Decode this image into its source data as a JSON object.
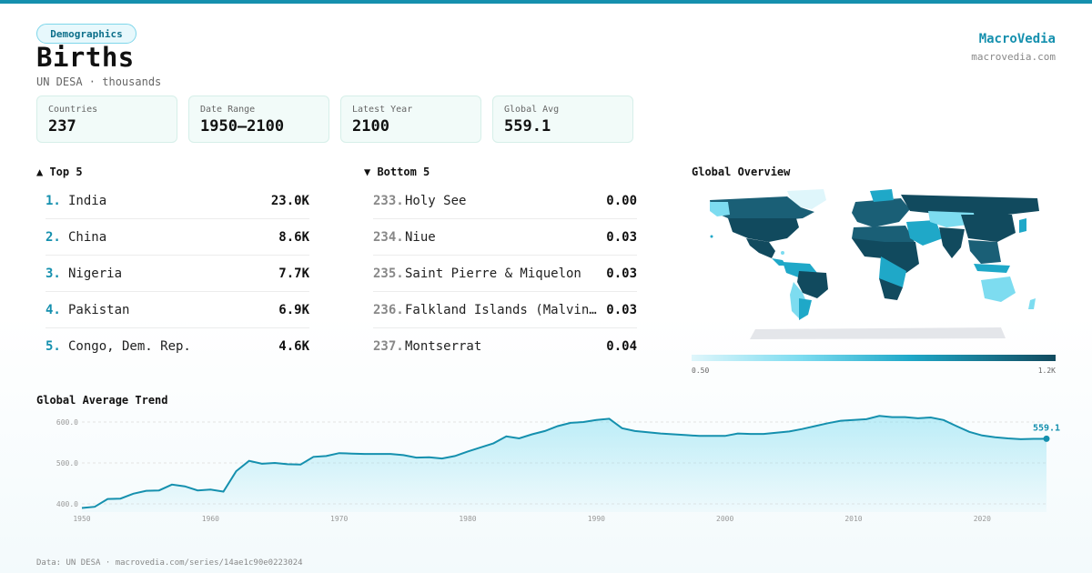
{
  "header": {
    "badge": "Demographics",
    "title": "Births",
    "subtitle": "UN DESA · thousands",
    "brand": "MacroVedia",
    "brand_url": "macrovedia.com"
  },
  "stats": [
    {
      "label": "Countries",
      "value": "237"
    },
    {
      "label": "Date Range",
      "value": "1950–2100"
    },
    {
      "label": "Latest Year",
      "value": "2100"
    },
    {
      "label": "Global Avg",
      "value": "559.1"
    }
  ],
  "top5": {
    "heading": "▲ Top 5",
    "rows": [
      {
        "rank": "1.",
        "name": "India",
        "value": "23.0K"
      },
      {
        "rank": "2.",
        "name": "China",
        "value": "8.6K"
      },
      {
        "rank": "3.",
        "name": "Nigeria",
        "value": "7.7K"
      },
      {
        "rank": "4.",
        "name": "Pakistan",
        "value": "6.9K"
      },
      {
        "rank": "5.",
        "name": "Congo, Dem. Rep.",
        "value": "4.6K"
      }
    ]
  },
  "bottom5": {
    "heading": "▼ Bottom 5",
    "rows": [
      {
        "rank": "233.",
        "name": "Holy See",
        "value": "0.00"
      },
      {
        "rank": "234.",
        "name": "Niue",
        "value": "0.03"
      },
      {
        "rank": "235.",
        "name": "Saint Pierre & Miquelon",
        "value": "0.03"
      },
      {
        "rank": "236.",
        "name": "Falkland Islands (Malvinas)",
        "value": "0.03"
      },
      {
        "rank": "237.",
        "name": "Montserrat",
        "value": "0.04"
      }
    ]
  },
  "map": {
    "heading": "Global Overview",
    "scale_min": "0.50",
    "scale_max": "1.2K"
  },
  "trend": {
    "heading": "Global Average Trend",
    "end_label": "559.1"
  },
  "footer": "Data: UN DESA · macrovedia.com/series/14ae1c90e0223024",
  "colors": {
    "accent": "#1590ae",
    "dark": "#114a5e",
    "light": "#7ddcf0"
  },
  "chart_data": {
    "type": "area",
    "title": "Global Average Trend",
    "xlabel": "",
    "ylabel": "",
    "xlim": [
      1950,
      2025
    ],
    "ylim": [
      380,
      620
    ],
    "yticks": [
      400.0,
      500.0,
      600.0
    ],
    "ytick_labels": [
      "400.0",
      "500.0",
      "600.0"
    ],
    "xticks": [
      1950,
      1960,
      1970,
      1980,
      1990,
      2000,
      2010,
      2020
    ],
    "grid": true,
    "end_value_label": "559.1",
    "series": [
      {
        "x": [
          1950,
          1951,
          1952,
          1953,
          1954,
          1955,
          1956,
          1957,
          1958,
          1959,
          1960,
          1961,
          1962,
          1963,
          1964,
          1965,
          1966,
          1967,
          1968,
          1969,
          1970,
          1971,
          1972,
          1973,
          1974,
          1975,
          1976,
          1977,
          1978,
          1979,
          1980,
          1981,
          1982,
          1983,
          1984,
          1985,
          1986,
          1987,
          1988,
          1989,
          1990,
          1991,
          1992,
          1993,
          1994,
          1995,
          1996,
          1997,
          1998,
          1999,
          2000,
          2001,
          2002,
          2003,
          2004,
          2005,
          2006,
          2007,
          2008,
          2009,
          2010,
          2011,
          2012,
          2013,
          2014,
          2015,
          2016,
          2017,
          2018,
          2019,
          2020,
          2021,
          2022,
          2023,
          2024,
          2025
        ],
        "values": [
          390,
          393,
          412,
          413,
          425,
          432,
          433,
          447,
          443,
          433,
          435,
          430,
          480,
          505,
          498,
          500,
          497,
          496,
          515,
          517,
          524,
          523,
          522,
          522,
          522,
          519,
          513,
          514,
          511,
          517,
          528,
          538,
          548,
          565,
          560,
          570,
          578,
          590,
          598,
          600,
          605,
          608,
          585,
          578,
          575,
          572,
          570,
          568,
          566,
          566,
          566,
          572,
          571,
          571,
          574,
          577,
          583,
          590,
          597,
          603,
          605,
          607,
          615,
          612,
          612,
          609,
          611,
          605,
          590,
          576,
          567,
          563,
          560,
          558,
          559,
          559.1
        ]
      }
    ]
  }
}
